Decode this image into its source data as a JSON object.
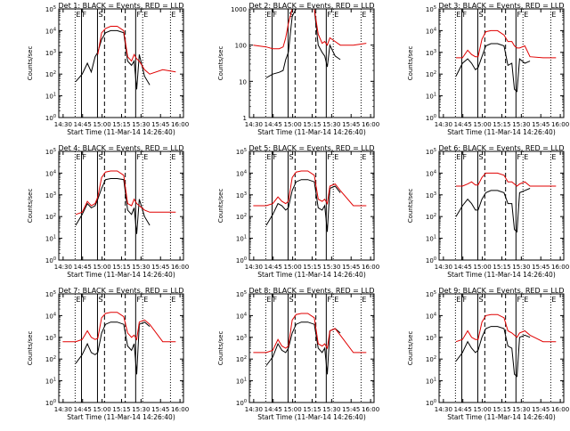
{
  "figure": {
    "xlabel": "Start Time (11-Mar-14 14:26:40)",
    "ylabel": "Counts/sec",
    "xticks": [
      "14:30",
      "14:45",
      "15:00",
      "15:15",
      "15:30",
      "15:45",
      "16:00"
    ],
    "xtick_minutes": [
      3.33,
      18.33,
      33.33,
      48.33,
      63.33,
      78.33,
      93.33
    ],
    "xlim_minutes": [
      0,
      96
    ],
    "series_colors": {
      "events": "#000000",
      "lld": "#e00000"
    },
    "markers": [
      {
        "label": "E",
        "minute": 12.6,
        "style": "dotted"
      },
      {
        "label": "F",
        "minute": 17.5,
        "style": "solid"
      },
      {
        "label": "S",
        "minute": 29.8,
        "style": "solid"
      },
      {
        "label": "",
        "minute": 35.2,
        "style": "dashed"
      },
      {
        "label": "",
        "minute": 51.2,
        "style": "dashed"
      },
      {
        "label": "F",
        "minute": 59.2,
        "style": "solid"
      },
      {
        "label": "E",
        "minute": 64.6,
        "style": "dotted"
      },
      {
        "label": "E",
        "minute": 86.0,
        "style": "dotted"
      }
    ]
  },
  "chart_data": [
    {
      "type": "line",
      "title": "Det 1: BLACK = Events, RED = LLD",
      "xlabel": "Start Time (11-Mar-14 14:26:40)",
      "ylabel": "Counts/sec",
      "ytick_labels": [
        "10^0",
        "10^1",
        "10^2",
        "10^3",
        "10^4",
        "10^5"
      ],
      "ylim_log10": [
        0,
        5
      ],
      "x": [
        13,
        18,
        22,
        25,
        28,
        30,
        33,
        36,
        40,
        45,
        50,
        53,
        56,
        58,
        60,
        62,
        66,
        70,
        80,
        90
      ],
      "series": [
        {
          "name": "BLACK = Events",
          "values": [
            1.65,
            2.0,
            2.5,
            2.1,
            2.8,
            3.0,
            3.6,
            3.9,
            4.0,
            4.0,
            3.9,
            2.6,
            2.4,
            2.6,
            1.3,
            2.9,
            1.9,
            1.5,
            null,
            null
          ]
        },
        {
          "name": "RED = LLD",
          "values": [
            null,
            null,
            null,
            null,
            null,
            2.9,
            3.9,
            4.1,
            4.2,
            4.2,
            4.0,
            2.8,
            2.6,
            2.9,
            2.7,
            2.6,
            2.2,
            2.0,
            2.2,
            2.1
          ]
        }
      ]
    },
    {
      "type": "line",
      "title": "Det 2: BLACK = Events, RED = LLD",
      "xlabel": "Start Time (11-Mar-14 14:26:40)",
      "ylabel": "Counts/sec",
      "ytick_labels": [
        "1",
        "10",
        "100",
        "1000"
      ],
      "ylim_log10": [
        0,
        3
      ],
      "x": [
        3,
        13,
        18,
        23,
        26,
        28,
        30,
        33,
        36,
        40,
        45,
        50,
        53,
        56,
        58,
        60,
        62,
        66,
        70,
        80,
        90
      ],
      "series": [
        {
          "name": "BLACK = Events",
          "values": [
            null,
            1.1,
            1.2,
            1.25,
            1.3,
            1.6,
            1.8,
            2.8,
            3.0,
            3.0,
            3.0,
            3.0,
            2.0,
            1.8,
            1.7,
            1.4,
            2.0,
            1.7,
            1.6,
            null,
            null
          ]
        },
        {
          "name": "RED = LLD",
          "values": [
            2.0,
            1.95,
            1.9,
            1.9,
            1.95,
            2.2,
            2.6,
            3.0,
            3.0,
            3.0,
            3.0,
            3.0,
            2.3,
            2.05,
            2.1,
            2.0,
            2.2,
            2.1,
            2.0,
            2.0,
            2.05
          ]
        }
      ]
    },
    {
      "type": "line",
      "title": "Det 3: BLACK = Events, RED = LLD",
      "xlabel": "Start Time (11-Mar-14 14:26:40)",
      "ylabel": "Counts/sec",
      "ytick_labels": [
        "10^0",
        "10^1",
        "10^2",
        "10^3",
        "10^4",
        "10^5"
      ],
      "ylim_log10": [
        0,
        5
      ],
      "x": [
        13,
        18,
        22,
        25,
        28,
        30,
        33,
        36,
        40,
        45,
        50,
        53,
        56,
        58,
        60,
        62,
        66,
        70,
        80,
        90
      ],
      "series": [
        {
          "name": "BLACK = Events",
          "values": [
            1.9,
            2.5,
            2.7,
            2.5,
            2.2,
            2.3,
            2.8,
            3.3,
            3.4,
            3.4,
            3.3,
            2.4,
            2.5,
            1.3,
            1.2,
            2.7,
            2.5,
            2.6,
            null,
            null
          ]
        },
        {
          "name": "RED = LLD",
          "values": [
            2.75,
            2.75,
            3.1,
            2.9,
            2.8,
            2.8,
            3.6,
            3.95,
            4.0,
            4.0,
            3.8,
            3.5,
            3.5,
            3.3,
            3.2,
            3.2,
            3.3,
            2.8,
            2.75,
            2.75
          ]
        }
      ]
    },
    {
      "type": "line",
      "title": "Det 4: BLACK = Events, RED = LLD",
      "xlabel": "Start Time (11-Mar-14 14:26:40)",
      "ylabel": "Counts/sec",
      "ytick_labels": [
        "10^0",
        "10^1",
        "10^2",
        "10^3",
        "10^4",
        "10^5"
      ],
      "ylim_log10": [
        0,
        5
      ],
      "x": [
        13,
        18,
        22,
        25,
        28,
        30,
        33,
        36,
        40,
        45,
        50,
        53,
        56,
        58,
        60,
        62,
        66,
        70,
        80,
        90
      ],
      "series": [
        {
          "name": "BLACK = Events",
          "values": [
            1.6,
            2.1,
            2.6,
            2.4,
            2.5,
            2.8,
            3.3,
            3.7,
            3.75,
            3.75,
            3.7,
            2.3,
            2.1,
            2.4,
            1.2,
            2.8,
            2.0,
            1.6,
            null,
            null
          ]
        },
        {
          "name": "RED = LLD",
          "values": [
            2.1,
            2.2,
            2.7,
            2.5,
            2.6,
            2.9,
            3.8,
            4.05,
            4.1,
            4.1,
            3.9,
            2.6,
            2.5,
            2.8,
            2.6,
            2.5,
            2.3,
            2.2,
            2.2,
            2.2
          ]
        }
      ]
    },
    {
      "type": "line",
      "title": "Det 5: BLACK = Events, RED = LLD",
      "xlabel": "Start Time (11-Mar-14 14:26:40)",
      "ylabel": "Counts/sec",
      "ytick_labels": [
        "10^0",
        "10^1",
        "10^2",
        "10^3",
        "10^4",
        "10^5"
      ],
      "ylim_log10": [
        0,
        5
      ],
      "x": [
        3,
        13,
        18,
        22,
        25,
        28,
        30,
        33,
        36,
        40,
        45,
        50,
        53,
        56,
        58,
        60,
        62,
        66,
        70,
        80,
        90
      ],
      "series": [
        {
          "name": "BLACK = Events",
          "values": [
            null,
            1.6,
            2.1,
            2.6,
            2.5,
            2.3,
            2.4,
            3.2,
            3.6,
            3.7,
            3.7,
            3.6,
            2.4,
            2.3,
            2.5,
            1.3,
            3.3,
            3.4,
            3.1,
            null,
            null
          ]
        },
        {
          "name": "RED = LLD",
          "values": [
            2.5,
            2.5,
            2.6,
            2.9,
            2.7,
            2.6,
            2.7,
            3.8,
            4.05,
            4.1,
            4.1,
            3.9,
            2.8,
            2.7,
            2.8,
            2.6,
            3.4,
            3.5,
            3.2,
            2.5,
            2.5
          ]
        }
      ]
    },
    {
      "type": "line",
      "title": "Det 6: BLACK = Events, RED = LLD",
      "xlabel": "Start Time (11-Mar-14 14:26:40)",
      "ylabel": "Counts/sec",
      "ytick_labels": [
        "10^0",
        "10^1",
        "10^2",
        "10^3",
        "10^4",
        "10^5"
      ],
      "ylim_log10": [
        0,
        5
      ],
      "x": [
        13,
        18,
        22,
        25,
        28,
        30,
        33,
        36,
        40,
        45,
        50,
        53,
        56,
        58,
        60,
        62,
        66,
        70,
        80,
        90
      ],
      "series": [
        {
          "name": "BLACK = Events",
          "values": [
            2.0,
            2.5,
            2.8,
            2.6,
            2.3,
            2.3,
            2.8,
            3.1,
            3.2,
            3.2,
            3.1,
            2.6,
            2.6,
            1.4,
            1.3,
            3.1,
            3.2,
            3.3,
            null,
            null
          ]
        },
        {
          "name": "RED = LLD",
          "values": [
            3.4,
            3.4,
            3.5,
            3.6,
            3.45,
            3.45,
            3.8,
            4.0,
            4.0,
            4.0,
            3.9,
            3.6,
            3.6,
            3.5,
            3.4,
            3.5,
            3.6,
            3.4,
            3.4,
            3.4
          ]
        }
      ]
    },
    {
      "type": "line",
      "title": "Det 7: BLACK = Events, RED = LLD",
      "xlabel": "Start Time (11-Mar-14 14:26:40)",
      "ylabel": "Counts/sec",
      "ytick_labels": [
        "10^0",
        "10^1",
        "10^2",
        "10^3",
        "10^4",
        "10^5"
      ],
      "ylim_log10": [
        0,
        5
      ],
      "x": [
        3,
        13,
        18,
        22,
        25,
        28,
        30,
        33,
        36,
        40,
        45,
        50,
        53,
        56,
        58,
        60,
        62,
        66,
        70,
        80,
        90
      ],
      "series": [
        {
          "name": "BLACK = Events",
          "values": [
            null,
            1.8,
            2.2,
            2.7,
            2.3,
            2.2,
            2.3,
            3.2,
            3.6,
            3.7,
            3.7,
            3.6,
            2.6,
            2.4,
            2.7,
            1.3,
            3.6,
            3.7,
            3.5,
            null,
            null
          ]
        },
        {
          "name": "RED = LLD",
          "values": [
            2.8,
            2.8,
            2.9,
            3.3,
            3.0,
            2.9,
            2.95,
            3.9,
            4.1,
            4.15,
            4.15,
            3.95,
            3.2,
            3.0,
            3.1,
            2.9,
            3.7,
            3.8,
            3.6,
            2.8,
            2.8
          ]
        }
      ]
    },
    {
      "type": "line",
      "title": "Det 8: BLACK = Events, RED = LLD",
      "xlabel": "Start Time (11-Mar-14 14:26:40)",
      "ylabel": "Counts/sec",
      "ytick_labels": [
        "10^0",
        "10^1",
        "10^2",
        "10^3",
        "10^4",
        "10^5"
      ],
      "ylim_log10": [
        0,
        5
      ],
      "x": [
        3,
        13,
        18,
        22,
        25,
        28,
        30,
        33,
        36,
        40,
        45,
        50,
        53,
        56,
        58,
        60,
        62,
        66,
        70,
        80,
        90
      ],
      "series": [
        {
          "name": "BLACK = Events",
          "values": [
            null,
            1.7,
            2.1,
            2.7,
            2.4,
            2.3,
            2.5,
            3.2,
            3.6,
            3.7,
            3.7,
            3.6,
            2.5,
            2.3,
            2.5,
            1.3,
            3.3,
            3.4,
            3.2,
            null,
            null
          ]
        },
        {
          "name": "RED = LLD",
          "values": [
            2.3,
            2.3,
            2.4,
            2.9,
            2.6,
            2.5,
            2.6,
            3.8,
            4.05,
            4.1,
            4.1,
            3.9,
            2.7,
            2.6,
            2.7,
            2.5,
            3.3,
            3.4,
            3.1,
            2.3,
            2.3
          ]
        }
      ]
    },
    {
      "type": "line",
      "title": "Det 9: BLACK = Events, RED = LLD",
      "xlabel": "Start Time (11-Mar-14 14:26:40)",
      "ylabel": "Counts/sec",
      "ytick_labels": [
        "10^0",
        "10^1",
        "10^2",
        "10^3",
        "10^4",
        "10^5"
      ],
      "ylim_log10": [
        0,
        5
      ],
      "x": [
        13,
        18,
        22,
        25,
        28,
        30,
        33,
        36,
        40,
        45,
        50,
        53,
        56,
        58,
        60,
        62,
        66,
        70,
        80,
        90
      ],
      "series": [
        {
          "name": "BLACK = Events",
          "values": [
            1.9,
            2.3,
            2.8,
            2.5,
            2.3,
            2.4,
            3.0,
            3.4,
            3.5,
            3.5,
            3.4,
            2.6,
            2.5,
            1.3,
            1.2,
            3.0,
            3.1,
            3.0,
            null,
            null
          ]
        },
        {
          "name": "RED = LLD",
          "values": [
            2.8,
            2.9,
            3.3,
            3.0,
            2.9,
            2.9,
            3.7,
            4.0,
            4.05,
            4.05,
            3.9,
            3.3,
            3.2,
            3.1,
            3.0,
            3.2,
            3.3,
            3.1,
            2.8,
            2.8
          ]
        }
      ]
    }
  ]
}
